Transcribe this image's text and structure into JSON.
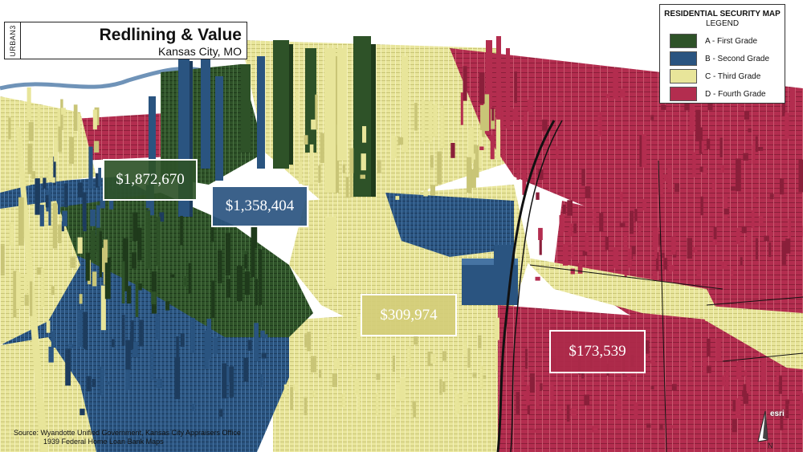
{
  "header": {
    "brand": "URBAN3",
    "title": "Redlining & Value",
    "subtitle": "Kansas City, MO"
  },
  "legend": {
    "title": "RESIDENTIAL SECURITY MAP",
    "subtitle": "LEGEND",
    "items": [
      {
        "label": "A - First Grade",
        "color": "#2e5228"
      },
      {
        "label": "B - Second Grade",
        "color": "#2a5480"
      },
      {
        "label": "C - Third Grade",
        "color": "#e8e59a"
      },
      {
        "label": "D - Fourth Grade",
        "color": "#b32d4f"
      }
    ]
  },
  "value_labels": {
    "a": "$1,872,670",
    "b": "$1,358,404",
    "c": "$309,974",
    "d": "$173,539"
  },
  "source": {
    "line1": "Source: Wyandotte Unified Government, Kansas City Appraisers Office",
    "line2": "1939 Federal Home Loan Bank Maps"
  },
  "attribution": "esri",
  "north_label": "N",
  "colors": {
    "grade_a": "#2e5228",
    "grade_b": "#2a5480",
    "grade_c": "#e8e59a",
    "grade_d": "#b32d4f"
  }
}
